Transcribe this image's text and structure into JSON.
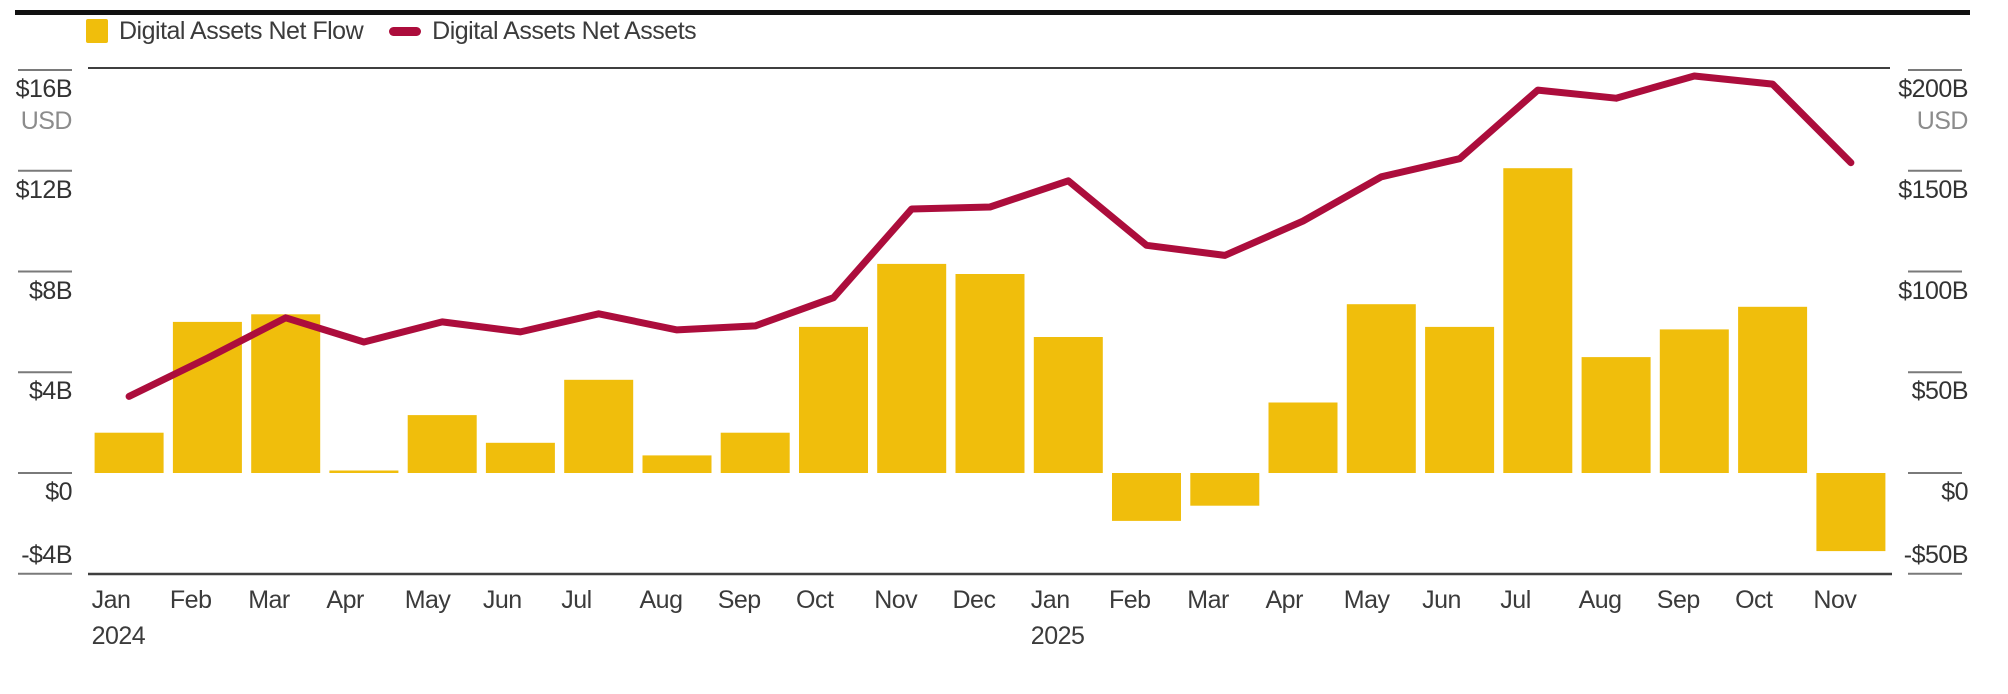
{
  "colors": {
    "bar": "#F0BE0C",
    "line": "#AC0D3C",
    "axis_text": "#333333",
    "muted_text": "#8C8C8C",
    "tick_line": "#7A7A7A",
    "plot_frame_line": "#3F3F3F",
    "top_border": "#111111",
    "background": "#FFFFFF"
  },
  "legend": {
    "items": [
      {
        "label": "Digital Assets Net Flow",
        "swatch": "square"
      },
      {
        "label": "Digital Assets Net Assets",
        "swatch": "dash"
      }
    ]
  },
  "chart_data": {
    "type": "bar+line dual-axis",
    "categories": [
      "Jan 2024",
      "Feb 2024",
      "Mar 2024",
      "Apr 2024",
      "May 2024",
      "Jun 2024",
      "Jul 2024",
      "Aug 2024",
      "Sep 2024",
      "Oct 2024",
      "Nov 2024",
      "Dec 2024",
      "Jan 2025",
      "Feb 2025",
      "Mar 2025",
      "Apr 2025",
      "May 2025",
      "Jun 2025",
      "Jul 2025",
      "Aug 2025",
      "Sep 2025",
      "Oct 2025",
      "Nov 2025"
    ],
    "months": [
      "Jan",
      "Feb",
      "Mar",
      "Apr",
      "May",
      "Jun",
      "Jul",
      "Aug",
      "Sep",
      "Oct",
      "Nov",
      "Dec",
      "Jan",
      "Feb",
      "Mar",
      "Apr",
      "May",
      "Jun",
      "Jul",
      "Aug",
      "Sep",
      "Oct",
      "Nov"
    ],
    "year_marks": [
      {
        "index": 0,
        "label": "2024"
      },
      {
        "index": 12,
        "label": "2025"
      }
    ],
    "series": [
      {
        "name": "Digital Assets Net Flow",
        "type": "bar",
        "axis": "left",
        "unit": "$B USD",
        "values": [
          1.6,
          6.0,
          6.3,
          0.1,
          2.3,
          1.2,
          3.7,
          0.7,
          1.6,
          5.8,
          8.3,
          7.9,
          5.4,
          -1.9,
          -1.3,
          2.8,
          6.7,
          5.8,
          12.1,
          4.6,
          5.7,
          6.6,
          -3.1
        ]
      },
      {
        "name": "Digital Assets Net Assets",
        "type": "line",
        "axis": "right",
        "unit": "$B USD",
        "values": [
          38,
          57,
          77,
          65,
          75,
          70,
          79,
          71,
          73,
          87,
          131,
          132,
          145,
          113,
          108,
          125,
          147,
          156,
          190,
          186,
          197,
          193,
          154
        ]
      }
    ],
    "left_axis": {
      "unit_label": "USD",
      "ticks": [
        {
          "label": "$16B",
          "value": 16
        },
        {
          "label": "$12B",
          "value": 12
        },
        {
          "label": "$8B",
          "value": 8
        },
        {
          "label": "$4B",
          "value": 4
        },
        {
          "label": "$0",
          "value": 0
        },
        {
          "label": "-$4B",
          "value": -4,
          "label_above": true
        }
      ],
      "range": [
        -4.1,
        16.1
      ]
    },
    "right_axis": {
      "unit_label": "USD",
      "ticks": [
        {
          "label": "$200B",
          "value": 200
        },
        {
          "label": "$150B",
          "value": 150
        },
        {
          "label": "$100B",
          "value": 100
        },
        {
          "label": "$50B",
          "value": 50
        },
        {
          "label": "$0",
          "value": 0
        },
        {
          "label": "-$50B",
          "value": -50,
          "label_above": true
        }
      ],
      "range": [
        -51,
        201
      ]
    },
    "grid": "none (top and bottom frame lines only)",
    "legend_position": "top-left"
  }
}
